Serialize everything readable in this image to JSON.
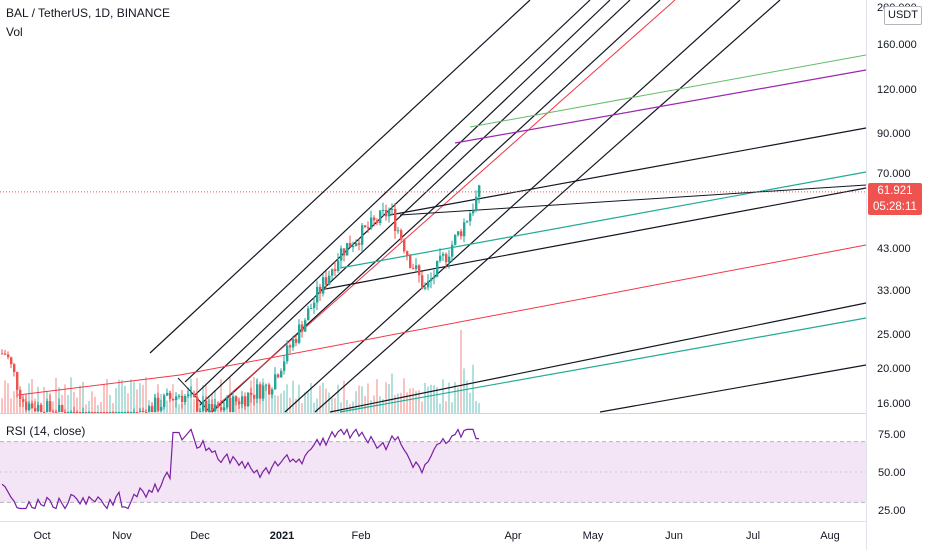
{
  "header": {
    "symbol_title": "BAL / TetherUS, 1D, BINANCE",
    "volume_label": "Vol",
    "rsi_label": "RSI (14, close)",
    "currency_badge": "USDT"
  },
  "price_axis": {
    "labels": [
      "200.000",
      "160.000",
      "120.000",
      "90.000",
      "70.000",
      "43.000",
      "33.000",
      "25.000",
      "20.000",
      "16.000"
    ],
    "last_price": "61.921",
    "countdown": "05:28:11"
  },
  "rsi_axis": {
    "labels": [
      "75.00",
      "50.00",
      "25.00"
    ]
  },
  "time_axis": {
    "labels": [
      "Oct",
      "Nov",
      "Dec",
      "2021",
      "Feb",
      "Apr",
      "May",
      "Jun",
      "Jul",
      "Aug"
    ]
  },
  "colors": {
    "up": "#26a69a",
    "down": "#ef5350",
    "rsi_line": "#7b1fa2",
    "rsi_band": "#f3e5f5",
    "trend_black": "#131722",
    "trend_red": "#f23645",
    "trend_teal": "#22ab94",
    "trend_purple": "#9c27b0",
    "trend_green": "#66bb6a"
  },
  "chart_data": {
    "type": "candlestick",
    "symbol": "BAL / TetherUS",
    "interval": "1D",
    "exchange": "BINANCE",
    "y_axis_ticks": [
      200,
      160,
      120,
      90,
      70,
      43,
      33,
      25,
      20,
      16
    ],
    "y_scale": "log",
    "last_close": 61.921,
    "x_axis_ticks": [
      "Oct",
      "Nov",
      "Dec",
      "2021",
      "Feb",
      "Apr",
      "May",
      "Jun",
      "Jul",
      "Aug"
    ],
    "closes_by_period": [
      {
        "period": "late Sep",
        "close": 22
      },
      {
        "period": "early Oct",
        "close": 16
      },
      {
        "period": "Oct",
        "close": 15
      },
      {
        "period": "Nov",
        "close": 14
      },
      {
        "period": "late Nov",
        "close": 17
      },
      {
        "period": "Dec",
        "close": 15
      },
      {
        "period": "early Jan",
        "close": 18
      },
      {
        "period": "mid Jan",
        "close": 26
      },
      {
        "period": "late Jan",
        "close": 42
      },
      {
        "period": "early Feb",
        "close": 55
      },
      {
        "period": "mid Feb",
        "close": 40
      },
      {
        "period": "late Feb",
        "close": 33
      },
      {
        "period": "early Mar",
        "close": 48
      },
      {
        "period": "mid Mar",
        "close": 61.921
      }
    ],
    "rsi": {
      "period": 14,
      "source": "close",
      "band": [
        30,
        70
      ],
      "ticks": [
        75,
        50,
        25
      ]
    }
  }
}
